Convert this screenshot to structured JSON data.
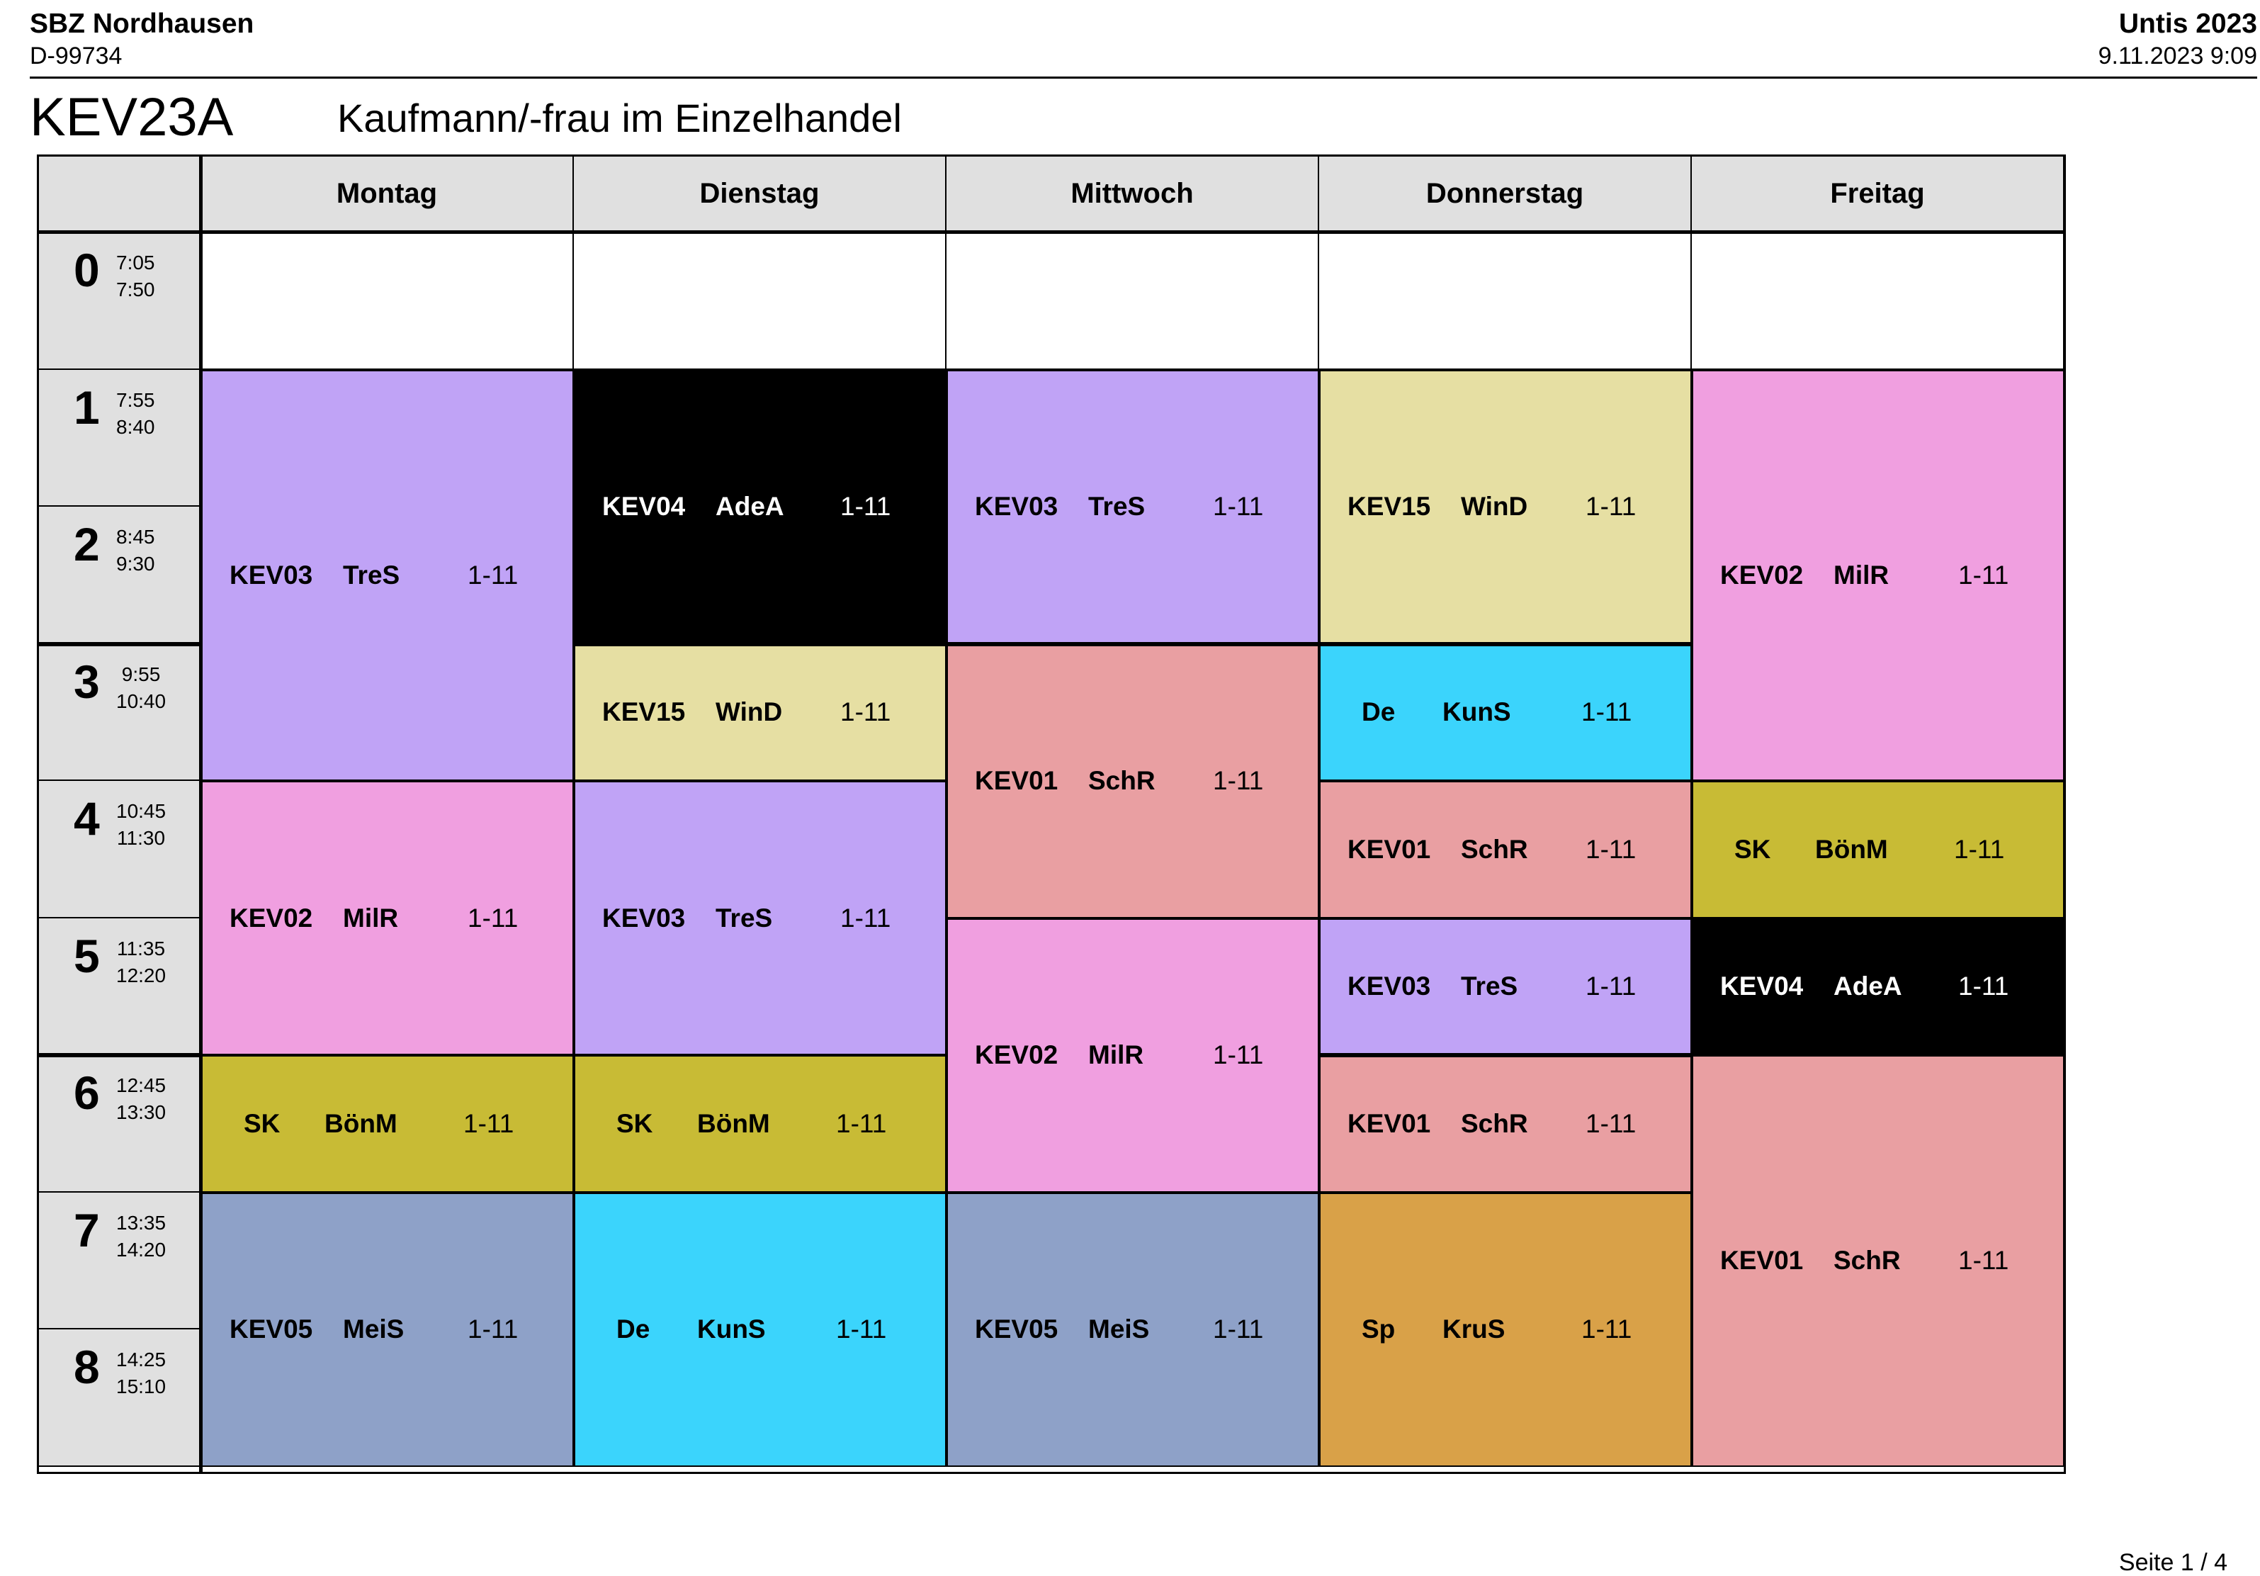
{
  "header": {
    "school": "SBZ Nordhausen",
    "school_id": "D-99734",
    "app": "Untis 2023",
    "print_date": "9.11.2023  9:09",
    "class_code": "KEV23A",
    "class_name": "Kaufmann/-frau im Einzelhandel"
  },
  "footer": {
    "page": "Seite 1 / 4"
  },
  "days": [
    "Montag",
    "Dienstag",
    "Mittwoch",
    "Donnerstag",
    "Freitag"
  ],
  "periods": [
    {
      "num": "0",
      "start": "7:05",
      "end": "7:50"
    },
    {
      "num": "1",
      "start": "7:55",
      "end": "8:40"
    },
    {
      "num": "2",
      "start": "8:45",
      "end": "9:30"
    },
    {
      "num": "3",
      "start": "9:55",
      "end": "10:40"
    },
    {
      "num": "4",
      "start": "10:45",
      "end": "11:30"
    },
    {
      "num": "5",
      "start": "11:35",
      "end": "12:20"
    },
    {
      "num": "6",
      "start": "12:45",
      "end": "13:30"
    },
    {
      "num": "7",
      "start": "13:35",
      "end": "14:20"
    },
    {
      "num": "8",
      "start": "14:25",
      "end": "15:10"
    }
  ],
  "colors": {
    "lavender": "#c0a3f6",
    "black": "#000000",
    "khaki": "#e6dfa3",
    "pink": "#f09fe0",
    "salmon": "#e99fa2",
    "cyan": "#3bd4fc",
    "olive": "#c8bb35",
    "steel": "#8ea1c8",
    "orange": "#d9a148"
  },
  "lessons": [
    {
      "day": 0,
      "from": 1,
      "to": 3,
      "subject": "KEV03",
      "teacher": "TreS",
      "weeks": "1-11",
      "color": "lavender"
    },
    {
      "day": 0,
      "from": 4,
      "to": 5,
      "subject": "KEV02",
      "teacher": "MilR",
      "weeks": "1-11",
      "color": "pink"
    },
    {
      "day": 0,
      "from": 6,
      "to": 6,
      "subject": "SK",
      "teacher": "BönM",
      "weeks": "1-11",
      "color": "olive"
    },
    {
      "day": 0,
      "from": 7,
      "to": 8,
      "subject": "KEV05",
      "teacher": "MeiS",
      "weeks": "1-11",
      "color": "steel"
    },
    {
      "day": 1,
      "from": 1,
      "to": 2,
      "subject": "KEV04",
      "teacher": "AdeA",
      "weeks": "1-11",
      "color": "black"
    },
    {
      "day": 1,
      "from": 3,
      "to": 3,
      "subject": "KEV15",
      "teacher": "WinD",
      "weeks": "1-11",
      "color": "khaki"
    },
    {
      "day": 1,
      "from": 4,
      "to": 5,
      "subject": "KEV03",
      "teacher": "TreS",
      "weeks": "1-11",
      "color": "lavender"
    },
    {
      "day": 1,
      "from": 6,
      "to": 6,
      "subject": "SK",
      "teacher": "BönM",
      "weeks": "1-11",
      "color": "olive"
    },
    {
      "day": 1,
      "from": 7,
      "to": 8,
      "subject": "De",
      "teacher": "KunS",
      "weeks": "1-11",
      "color": "cyan"
    },
    {
      "day": 2,
      "from": 1,
      "to": 2,
      "subject": "KEV03",
      "teacher": "TreS",
      "weeks": "1-11",
      "color": "lavender"
    },
    {
      "day": 2,
      "from": 3,
      "to": 4,
      "subject": "KEV01",
      "teacher": "SchR",
      "weeks": "1-11",
      "color": "salmon"
    },
    {
      "day": 2,
      "from": 5,
      "to": 6,
      "subject": "KEV02",
      "teacher": "MilR",
      "weeks": "1-11",
      "color": "pink"
    },
    {
      "day": 2,
      "from": 7,
      "to": 8,
      "subject": "KEV05",
      "teacher": "MeiS",
      "weeks": "1-11",
      "color": "steel"
    },
    {
      "day": 3,
      "from": 1,
      "to": 2,
      "subject": "KEV15",
      "teacher": "WinD",
      "weeks": "1-11",
      "color": "khaki"
    },
    {
      "day": 3,
      "from": 3,
      "to": 3,
      "subject": "De",
      "teacher": "KunS",
      "weeks": "1-11",
      "color": "cyan"
    },
    {
      "day": 3,
      "from": 4,
      "to": 4,
      "subject": "KEV01",
      "teacher": "SchR",
      "weeks": "1-11",
      "color": "salmon"
    },
    {
      "day": 3,
      "from": 5,
      "to": 5,
      "subject": "KEV03",
      "teacher": "TreS",
      "weeks": "1-11",
      "color": "lavender"
    },
    {
      "day": 3,
      "from": 6,
      "to": 6,
      "subject": "KEV01",
      "teacher": "SchR",
      "weeks": "1-11",
      "color": "salmon"
    },
    {
      "day": 3,
      "from": 7,
      "to": 8,
      "subject": "Sp",
      "teacher": "KruS",
      "weeks": "1-11",
      "color": "orange"
    },
    {
      "day": 4,
      "from": 1,
      "to": 3,
      "subject": "KEV02",
      "teacher": "MilR",
      "weeks": "1-11",
      "color": "pink"
    },
    {
      "day": 4,
      "from": 4,
      "to": 4,
      "subject": "SK",
      "teacher": "BönM",
      "weeks": "1-11",
      "color": "olive"
    },
    {
      "day": 4,
      "from": 5,
      "to": 5,
      "subject": "KEV04",
      "teacher": "AdeA",
      "weeks": "1-11",
      "color": "black"
    },
    {
      "day": 4,
      "from": 6,
      "to": 8,
      "subject": "KEV01",
      "teacher": "SchR",
      "weeks": "1-11",
      "color": "salmon"
    }
  ]
}
